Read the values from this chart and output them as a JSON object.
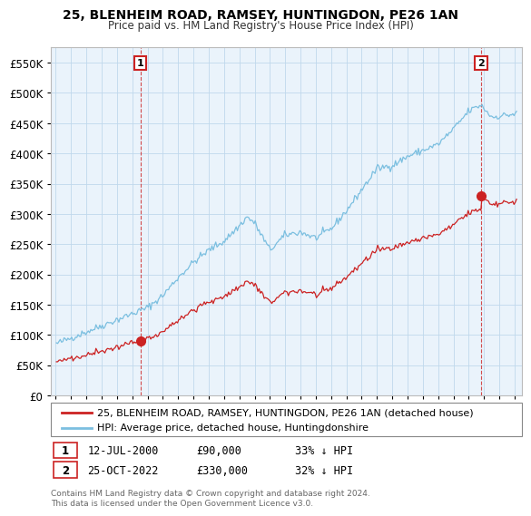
{
  "title": "25, BLENHEIM ROAD, RAMSEY, HUNTINGDON, PE26 1AN",
  "subtitle": "Price paid vs. HM Land Registry's House Price Index (HPI)",
  "y_ticks": [
    0,
    50000,
    100000,
    150000,
    200000,
    250000,
    300000,
    350000,
    400000,
    450000,
    500000,
    550000
  ],
  "ylim": [
    0,
    575000
  ],
  "xlim_start": 1994.7,
  "xlim_end": 2025.5,
  "sale1_x": 2000.54,
  "sale1_y": 90000,
  "sale2_x": 2022.81,
  "sale2_y": 330000,
  "line_color_hpi": "#7bbfe0",
  "line_color_sold": "#cc2222",
  "background_color": "#ffffff",
  "plot_bg_color": "#eaf3fb",
  "grid_color": "#c0d8ec",
  "legend_label_sold": "25, BLENHEIM ROAD, RAMSEY, HUNTINGDON, PE26 1AN (detached house)",
  "legend_label_hpi": "HPI: Average price, detached house, Huntingdonshire",
  "sale1_date": "12-JUL-2000",
  "sale1_price": "£90,000",
  "sale1_hpi": "33% ↓ HPI",
  "sale2_date": "25-OCT-2022",
  "sale2_price": "£330,000",
  "sale2_hpi": "32% ↓ HPI",
  "footer": "Contains HM Land Registry data © Crown copyright and database right 2024.\nThis data is licensed under the Open Government Licence v3.0."
}
